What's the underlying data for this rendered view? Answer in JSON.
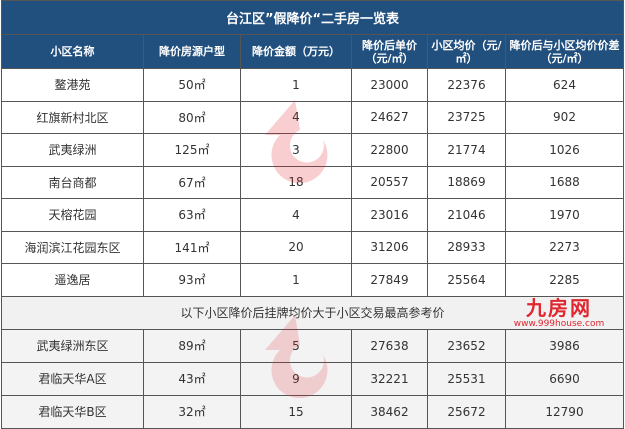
{
  "title": "台江区”假降价“二手房一览表",
  "headers": [
    "小区名称",
    "降价房源户型",
    "降价金额（万元）",
    "降价后单价（元/㎡）",
    "小区均价（元/㎡）",
    "降价后与小区均价价差（元/㎡）"
  ],
  "rows": [
    [
      "鳌港苑",
      "50㎡",
      "1",
      "23000",
      "22376",
      "624"
    ],
    [
      "红旗新村北区",
      "80㎡",
      "4",
      "24627",
      "23725",
      "902"
    ],
    [
      "武夷绿洲",
      "125㎡",
      "3",
      "22800",
      "21774",
      "1026"
    ],
    [
      "南台商都",
      "67㎡",
      "18",
      "20557",
      "18869",
      "1688"
    ],
    [
      "天榕花园",
      "63㎡",
      "4",
      "23016",
      "21046",
      "1970"
    ],
    [
      "海润滨江花园东区",
      "141㎡",
      "20",
      "31206",
      "28933",
      "2273"
    ],
    [
      "遥逸居",
      "93㎡",
      "1",
      "27849",
      "25564",
      "2285"
    ]
  ],
  "note": "以下小区降价后挂牌均价大于小区交易最高参考价",
  "rows2": [
    [
      "武夷绿洲东区",
      "89㎡",
      "5",
      "27638",
      "23652",
      "3986"
    ],
    [
      "君临天华A区",
      "43㎡",
      "9",
      "32221",
      "25531",
      "6690"
    ],
    [
      "君临天华B区",
      "32㎡",
      "15",
      "38462",
      "25672",
      "12790"
    ]
  ],
  "watermark": {
    "text": "九房网",
    "url": "www.999house.com",
    "color": "#e0262e"
  },
  "colors": {
    "header_bg": "#22507e",
    "header_text": "#ffffff"
  }
}
